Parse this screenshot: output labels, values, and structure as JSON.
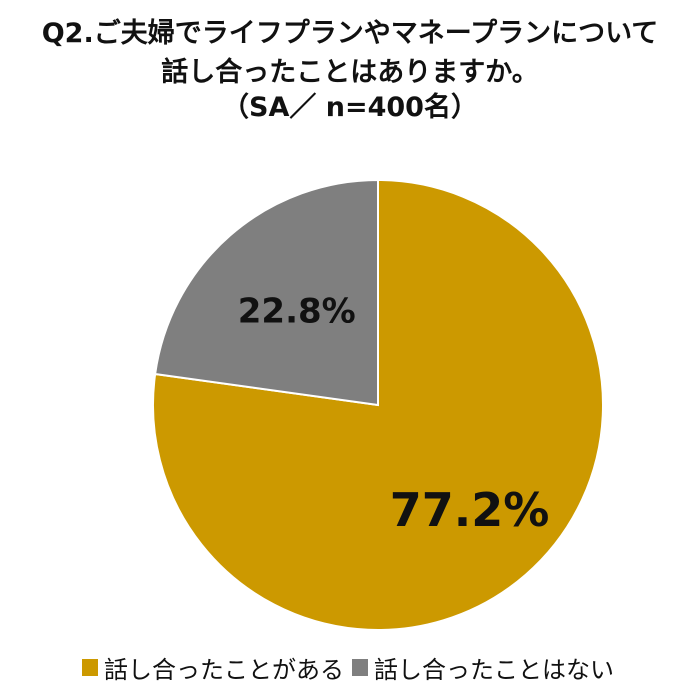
{
  "chart_data": {
    "type": "pie",
    "title": [
      "Q2.ご夫婦でライフプランやマネープランについて",
      "話し合ったことはありますか。",
      "（SA／ n=400名）"
    ],
    "start": "top",
    "direction": "clockwise",
    "slices": [
      {
        "name": "話し合ったことがある",
        "value": 77.2,
        "label": "77.2%",
        "color": "#CC9900"
      },
      {
        "name": "話し合ったことはない",
        "value": 22.8,
        "label": "22.8%",
        "color": "#7F7F7F"
      }
    ],
    "legend_position": "bottom"
  }
}
